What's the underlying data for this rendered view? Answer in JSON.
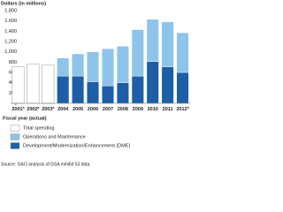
{
  "chart_data": {
    "type": "stacked_bar",
    "y_axis_label": "Dollars (in millions)",
    "x_axis_label": "Fiscal year (actual)",
    "source": "Source: GAO analysis of GSA exhibit 53 data.",
    "categories": [
      "2001",
      "2002",
      "2003",
      "2004",
      "2005",
      "2006",
      "2007",
      "2008",
      "2009",
      "2010",
      "2011",
      "2012"
    ],
    "category_notes": [
      "a",
      "a",
      "a",
      null,
      null,
      null,
      null,
      null,
      null,
      null,
      null,
      "b"
    ],
    "series": [
      {
        "name": "Total spending",
        "color": "#ffffff",
        "values": [
          710,
          760,
          740,
          null,
          null,
          null,
          null,
          null,
          null,
          null,
          null,
          null
        ]
      },
      {
        "name": "Operations and Maintenance",
        "color": "#8ec4ea",
        "values": [
          null,
          null,
          null,
          350,
          430,
          580,
          720,
          710,
          900,
          820,
          870,
          770
        ]
      },
      {
        "name": "Development/Modernization/Enhancement (DME)",
        "color": "#1d5ea6",
        "values": [
          null,
          null,
          null,
          530,
          530,
          420,
          340,
          400,
          530,
          810,
          710,
          600
        ]
      }
    ],
    "stack_order": [
      2,
      1
    ],
    "ylim": [
      0,
      1800
    ],
    "yticks": [
      0,
      200,
      400,
      600,
      800,
      {
        "value": 1000,
        "label": "1,000"
      },
      {
        "value": 1200,
        "label": "1,200"
      },
      {
        "value": 1400,
        "label": "1,400"
      },
      {
        "value": 1600,
        "label": "1,600"
      },
      {
        "value": 1800,
        "label": "1,800"
      }
    ]
  }
}
